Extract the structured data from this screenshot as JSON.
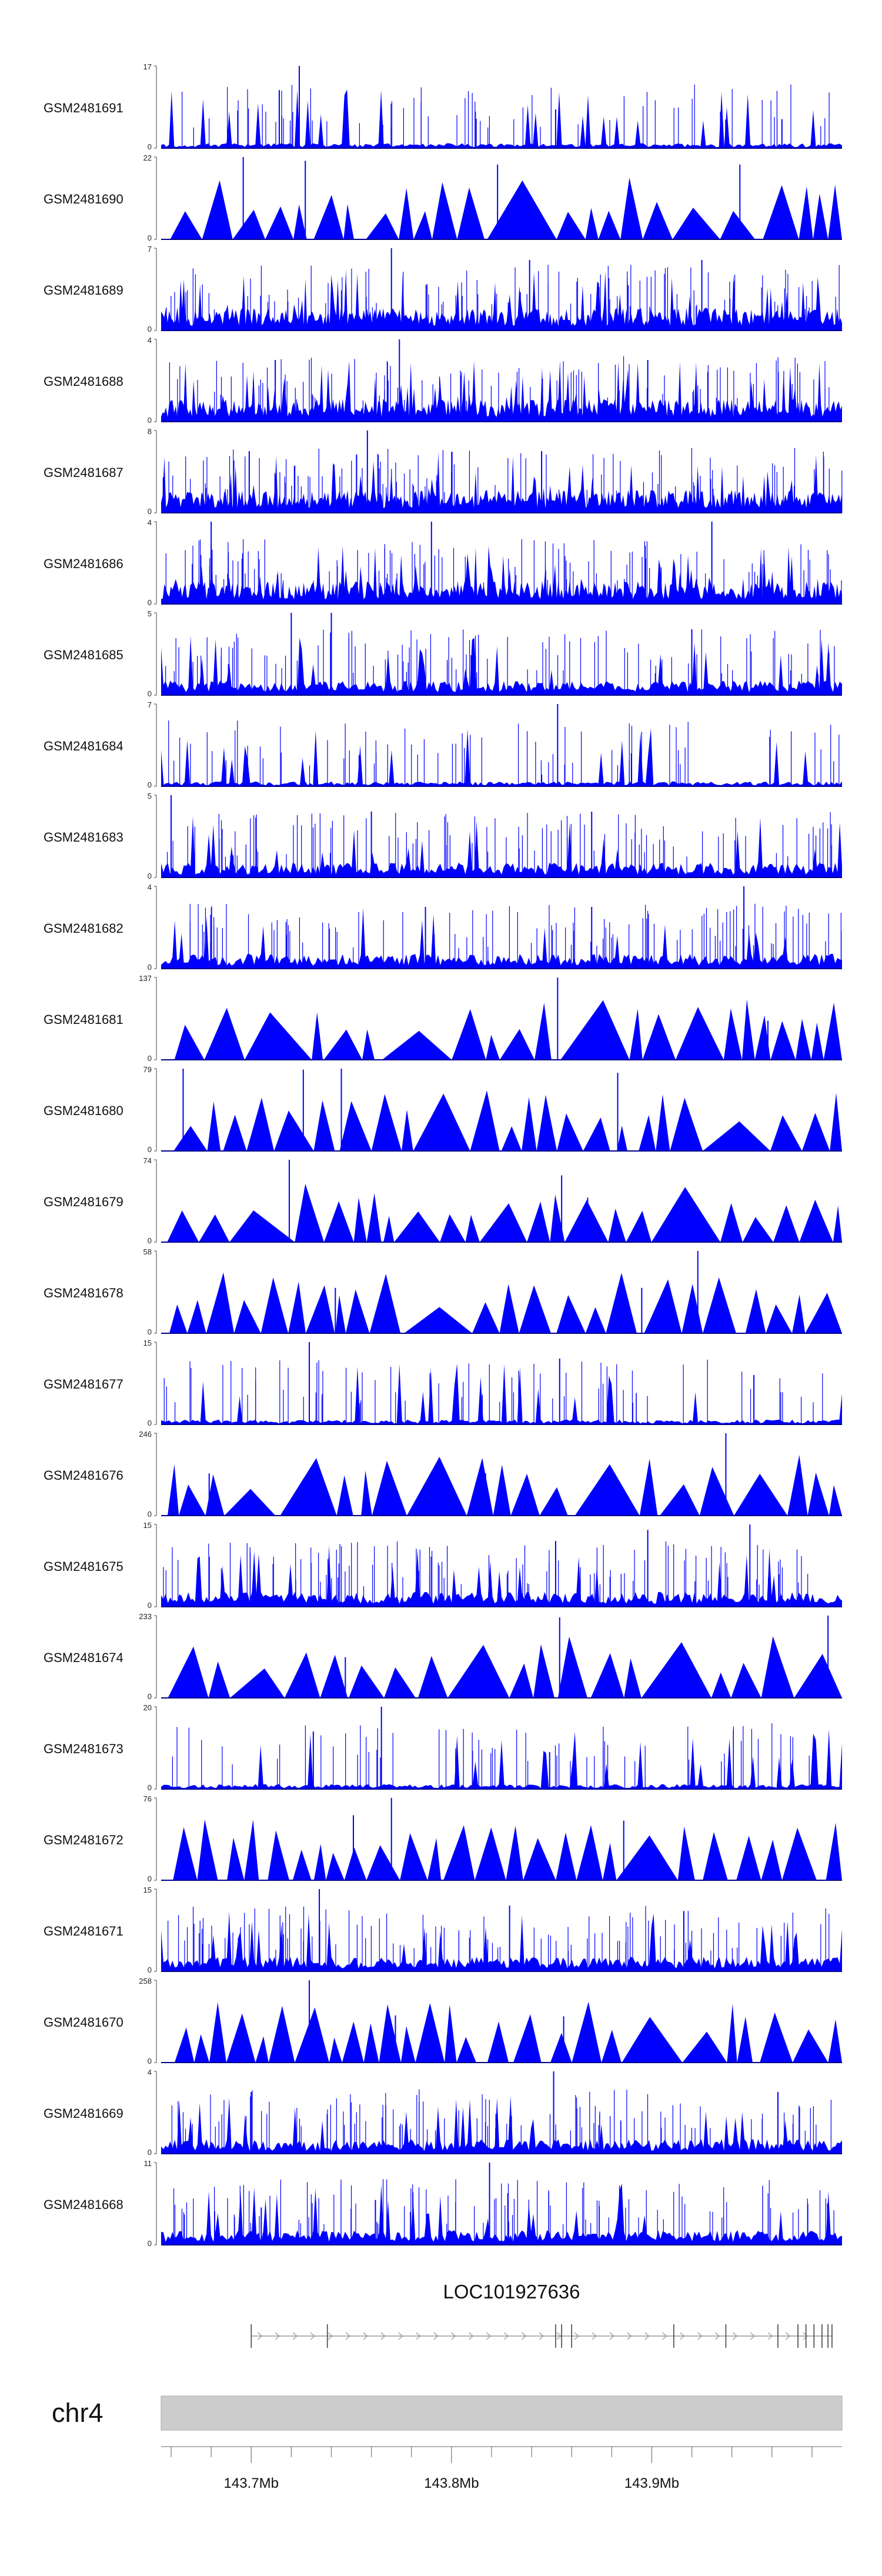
{
  "chart_data": {
    "type": "area",
    "title": "",
    "chromosome": "chr4",
    "gene": {
      "name": "LOC101927636",
      "strand": "+"
    },
    "x_axis": {
      "unit": "Mb",
      "range": [
        143.655,
        143.995
      ],
      "tick_labels": [
        "143.7Mb",
        "143.8Mb",
        "143.9Mb"
      ],
      "tick_values": [
        143.7,
        143.8,
        143.9
      ]
    },
    "tracks": [
      {
        "sample": "GSM2481691",
        "ymax": 17,
        "y0": 0,
        "pattern": "sparse_spiky",
        "peaks": [
          [
            143.724,
            17
          ],
          [
            143.714,
            12
          ],
          [
            143.852,
            8
          ],
          [
            143.965,
            6
          ]
        ]
      },
      {
        "sample": "GSM2481690",
        "ymax": 22,
        "y0": 0,
        "pattern": "blocky",
        "peaks": [
          [
            143.696,
            22
          ],
          [
            143.727,
            21
          ],
          [
            143.823,
            20
          ],
          [
            143.944,
            20
          ]
        ]
      },
      {
        "sample": "GSM2481689",
        "ymax": 7,
        "y0": 0,
        "pattern": "dense",
        "peaks": [
          [
            143.77,
            7
          ],
          [
            143.839,
            6
          ],
          [
            143.925,
            6
          ]
        ]
      },
      {
        "sample": "GSM2481688",
        "ymax": 4,
        "y0": 0,
        "pattern": "dense",
        "peaks": [
          [
            143.774,
            4
          ],
          [
            143.712,
            3
          ],
          [
            143.898,
            3
          ]
        ]
      },
      {
        "sample": "GSM2481687",
        "ymax": 8,
        "y0": 0,
        "pattern": "dense",
        "peaks": [
          [
            143.758,
            8
          ],
          [
            143.699,
            6
          ],
          [
            143.845,
            6
          ]
        ]
      },
      {
        "sample": "GSM2481686",
        "ymax": 4,
        "y0": 0,
        "pattern": "dense",
        "peaks": [
          [
            143.68,
            4
          ],
          [
            143.79,
            4
          ],
          [
            143.93,
            4
          ]
        ]
      },
      {
        "sample": "GSM2481685",
        "ymax": 5,
        "y0": 0,
        "pattern": "medium",
        "peaks": [
          [
            143.72,
            5
          ],
          [
            143.74,
            5
          ],
          [
            143.92,
            4
          ]
        ]
      },
      {
        "sample": "GSM2481684",
        "ymax": 7,
        "y0": 0,
        "pattern": "sparse_spiky",
        "peaks": [
          [
            143.853,
            7
          ],
          [
            143.845,
            1
          ]
        ]
      },
      {
        "sample": "GSM2481683",
        "ymax": 5,
        "y0": 0,
        "pattern": "medium",
        "peaks": [
          [
            143.66,
            5
          ],
          [
            143.76,
            4
          ],
          [
            143.87,
            4
          ]
        ]
      },
      {
        "sample": "GSM2481682",
        "ymax": 4,
        "y0": 0,
        "pattern": "medium",
        "peaks": [
          [
            143.946,
            4
          ],
          [
            143.787,
            3
          ],
          [
            143.87,
            3
          ]
        ]
      },
      {
        "sample": "GSM2481681",
        "ymax": 137,
        "y0": 0,
        "pattern": "blocky",
        "peaks": [
          [
            143.853,
            137
          ],
          [
            143.708,
            67
          ],
          [
            143.958,
            65
          ]
        ]
      },
      {
        "sample": "GSM2481680",
        "ymax": 79,
        "y0": 0,
        "pattern": "blocky",
        "peaks": [
          [
            143.666,
            79
          ],
          [
            143.745,
            79
          ],
          [
            143.726,
            78
          ],
          [
            143.883,
            75
          ]
        ]
      },
      {
        "sample": "GSM2481679",
        "ymax": 74,
        "y0": 0,
        "pattern": "blocky",
        "peaks": [
          [
            143.719,
            74
          ],
          [
            143.855,
            60
          ],
          [
            143.868,
            40
          ]
        ]
      },
      {
        "sample": "GSM2481678",
        "ymax": 58,
        "y0": 0,
        "pattern": "blocky",
        "peaks": [
          [
            143.923,
            58
          ],
          [
            143.895,
            32
          ],
          [
            143.742,
            32
          ]
        ]
      },
      {
        "sample": "GSM2481677",
        "ymax": 15,
        "y0": 0,
        "pattern": "sparse_spiky",
        "peaks": [
          [
            143.729,
            15
          ],
          [
            143.854,
            12
          ],
          [
            143.951,
            9
          ]
        ]
      },
      {
        "sample": "GSM2481676",
        "ymax": 246,
        "y0": 0,
        "pattern": "blocky",
        "peaks": [
          [
            143.937,
            246
          ],
          [
            143.817,
            126
          ],
          [
            143.679,
            126
          ]
        ]
      },
      {
        "sample": "GSM2481675",
        "ymax": 15,
        "y0": 0,
        "pattern": "medium",
        "peaks": [
          [
            143.949,
            15
          ],
          [
            143.898,
            14
          ],
          [
            143.852,
            12
          ]
        ]
      },
      {
        "sample": "GSM2481674",
        "ymax": 233,
        "y0": 0,
        "pattern": "blocky",
        "peaks": [
          [
            143.988,
            233
          ],
          [
            143.854,
            228
          ],
          [
            143.747,
            115
          ]
        ]
      },
      {
        "sample": "GSM2481673",
        "ymax": 20,
        "y0": 0,
        "pattern": "sparse_spiky",
        "peaks": [
          [
            143.765,
            20
          ],
          [
            143.731,
            14
          ],
          [
            143.849,
            9
          ]
        ]
      },
      {
        "sample": "GSM2481672",
        "ymax": 76,
        "y0": 0,
        "pattern": "blocky",
        "peaks": [
          [
            143.77,
            76
          ],
          [
            143.751,
            60
          ],
          [
            143.886,
            55
          ]
        ]
      },
      {
        "sample": "GSM2481671",
        "ymax": 15,
        "y0": 0,
        "pattern": "medium",
        "peaks": [
          [
            143.734,
            15
          ],
          [
            143.829,
            12
          ],
          [
            143.916,
            11
          ]
        ]
      },
      {
        "sample": "GSM2481670",
        "ymax": 258,
        "y0": 0,
        "pattern": "blocky",
        "peaks": [
          [
            143.729,
            258
          ],
          [
            143.772,
            148
          ],
          [
            143.856,
            145
          ]
        ]
      },
      {
        "sample": "GSM2481669",
        "ymax": 4,
        "y0": 0,
        "pattern": "medium",
        "peaks": [
          [
            143.851,
            4
          ],
          [
            143.7,
            3
          ],
          [
            143.963,
            3
          ]
        ]
      },
      {
        "sample": "GSM2481668",
        "ymax": 11,
        "y0": 0,
        "pattern": "medium",
        "peaks": [
          [
            143.819,
            11
          ],
          [
            143.762,
            6
          ],
          [
            143.705,
            5
          ]
        ]
      }
    ],
    "colors": {
      "signal": "#0000ff",
      "signal_dark": "#00008b",
      "axis": "#444444",
      "ideogram": "#cccccc",
      "gene": "#999999"
    }
  }
}
